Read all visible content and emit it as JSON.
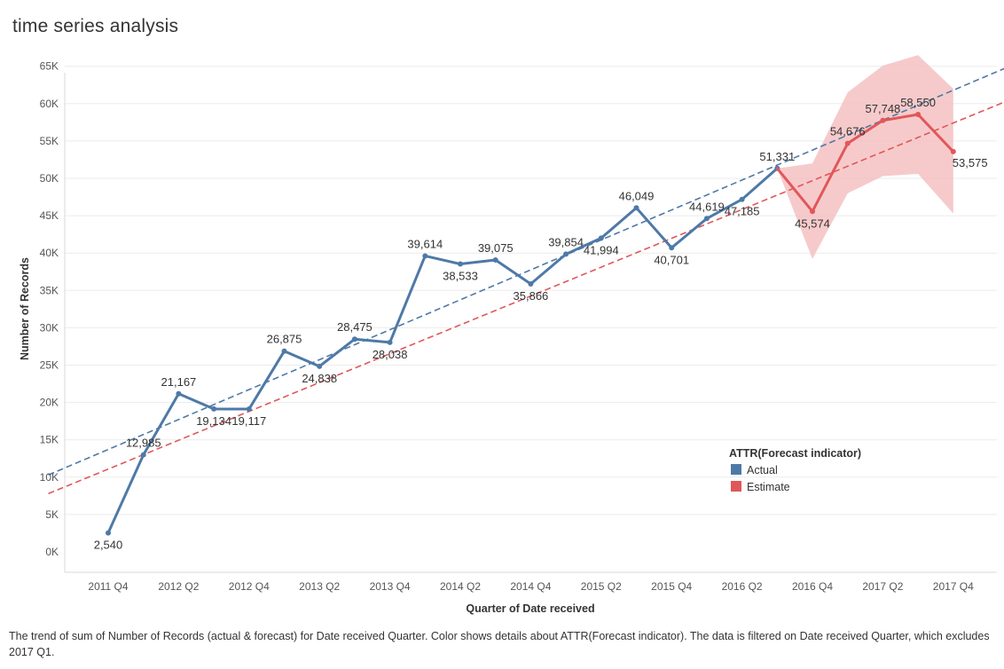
{
  "page": {
    "title": "time series analysis",
    "caption": "The trend of sum of Number of Records (actual & forecast)  for Date received Quarter.  Color shows details about ATTR(Forecast indicator). The data is filtered on Date received Quarter, which excludes 2017 Q1."
  },
  "colors": {
    "actual": "#4e79a7",
    "estimate": "#e15759",
    "band": "#f4c1c2",
    "grid": "#ebebeb"
  },
  "chart_data": {
    "type": "line",
    "xlabel": "Quarter of Date received",
    "ylabel": "Number of Records",
    "ylim": [
      0,
      65000
    ],
    "yticks": [
      0,
      5000,
      10000,
      15000,
      20000,
      25000,
      30000,
      35000,
      40000,
      45000,
      50000,
      55000,
      60000,
      65000
    ],
    "ytick_labels": [
      "0K",
      "5K",
      "10K",
      "15K",
      "20K",
      "25K",
      "30K",
      "35K",
      "40K",
      "45K",
      "50K",
      "55K",
      "60K",
      "65K"
    ],
    "xtick_labels": [
      {
        "index": 0,
        "label": "2011 Q4"
      },
      {
        "index": 2,
        "label": "2012 Q2"
      },
      {
        "index": 4,
        "label": "2012 Q4"
      },
      {
        "index": 6,
        "label": "2013 Q2"
      },
      {
        "index": 8,
        "label": "2013 Q4"
      },
      {
        "index": 10,
        "label": "2014 Q2"
      },
      {
        "index": 12,
        "label": "2014 Q4"
      },
      {
        "index": 14,
        "label": "2015 Q2"
      },
      {
        "index": 16,
        "label": "2015 Q4"
      },
      {
        "index": 18,
        "label": "2016 Q2"
      },
      {
        "index": 20,
        "label": "2016 Q4"
      },
      {
        "index": 22,
        "label": "2017 Q2"
      },
      {
        "index": 24,
        "label": "2017 Q4"
      }
    ],
    "grid": true,
    "legend": {
      "title": "ATTR(Forecast indicator)",
      "placement": "lower-right",
      "items": [
        {
          "name": "Actual",
          "color_key": "actual"
        },
        {
          "name": "Estimate",
          "color_key": "estimate"
        }
      ]
    },
    "series": [
      {
        "name": "Actual",
        "color_key": "actual",
        "points": [
          {
            "i": 0,
            "y": 2540,
            "label": "2,540",
            "pos": "below"
          },
          {
            "i": 1,
            "y": 12985,
            "label": "12,985",
            "pos": "above"
          },
          {
            "i": 2,
            "y": 21167,
            "label": "21,167",
            "pos": "above"
          },
          {
            "i": 3,
            "y": 19134,
            "label": "19,134",
            "pos": "below"
          },
          {
            "i": 4,
            "y": 19117,
            "label": "19,117",
            "pos": "below"
          },
          {
            "i": 5,
            "y": 26875,
            "label": "26,875",
            "pos": "above"
          },
          {
            "i": 6,
            "y": 24838,
            "label": "24,838",
            "pos": "below"
          },
          {
            "i": 7,
            "y": 28475,
            "label": "28,475",
            "pos": "above"
          },
          {
            "i": 8,
            "y": 28038,
            "label": "28,038",
            "pos": "below"
          },
          {
            "i": 9,
            "y": 39614,
            "label": "39,614",
            "pos": "above"
          },
          {
            "i": 10,
            "y": 38533,
            "label": "38,533",
            "pos": "below"
          },
          {
            "i": 11,
            "y": 39075,
            "label": "39,075",
            "pos": "above"
          },
          {
            "i": 12,
            "y": 35866,
            "label": "35,866",
            "pos": "below"
          },
          {
            "i": 13,
            "y": 39854,
            "label": "39,854",
            "pos": "above"
          },
          {
            "i": 14,
            "y": 41994,
            "label": "41,994",
            "pos": "below"
          },
          {
            "i": 15,
            "y": 46049,
            "label": "46,049",
            "pos": "above"
          },
          {
            "i": 16,
            "y": 40701,
            "label": "40,701",
            "pos": "below"
          },
          {
            "i": 17,
            "y": 44619,
            "label": "44,619",
            "pos": "above"
          },
          {
            "i": 18,
            "y": 47185,
            "label": "47,185",
            "pos": "below"
          },
          {
            "i": 19,
            "y": 51331,
            "label": "51,331",
            "pos": "above"
          }
        ]
      },
      {
        "name": "Estimate",
        "color_key": "estimate",
        "points": [
          {
            "i": 19,
            "y": 51331,
            "label": null
          },
          {
            "i": 20,
            "y": 45574,
            "label": "45,574",
            "pos": "below"
          },
          {
            "i": 21,
            "y": 54676,
            "label": "54,676",
            "pos": "above"
          },
          {
            "i": 22,
            "y": 57748,
            "label": "57,748",
            "pos": "above"
          },
          {
            "i": 23,
            "y": 58550,
            "label": "58,550",
            "pos": "above"
          },
          {
            "i": 24,
            "y": 53575,
            "label": "53,575",
            "pos": "right"
          }
        ]
      }
    ],
    "forecast_band": [
      {
        "i": 19,
        "low": 51331,
        "high": 51331
      },
      {
        "i": 20,
        "low": 39200,
        "high": 52000
      },
      {
        "i": 21,
        "low": 48000,
        "high": 61500
      },
      {
        "i": 22,
        "low": 50300,
        "high": 65100
      },
      {
        "i": 23,
        "low": 50600,
        "high": 66500
      },
      {
        "i": 24,
        "low": 45300,
        "high": 62000
      }
    ],
    "trend_lines": [
      {
        "name": "Actual trend",
        "color_key": "actual",
        "from": {
          "i": -1.7,
          "y": 10300
        },
        "to": {
          "i": 25.6,
          "y": 65000
        }
      },
      {
        "name": "Estimate trend",
        "color_key": "estimate",
        "from": {
          "i": -1.7,
          "y": 7800
        },
        "to": {
          "i": 25.6,
          "y": 60500
        }
      }
    ]
  }
}
